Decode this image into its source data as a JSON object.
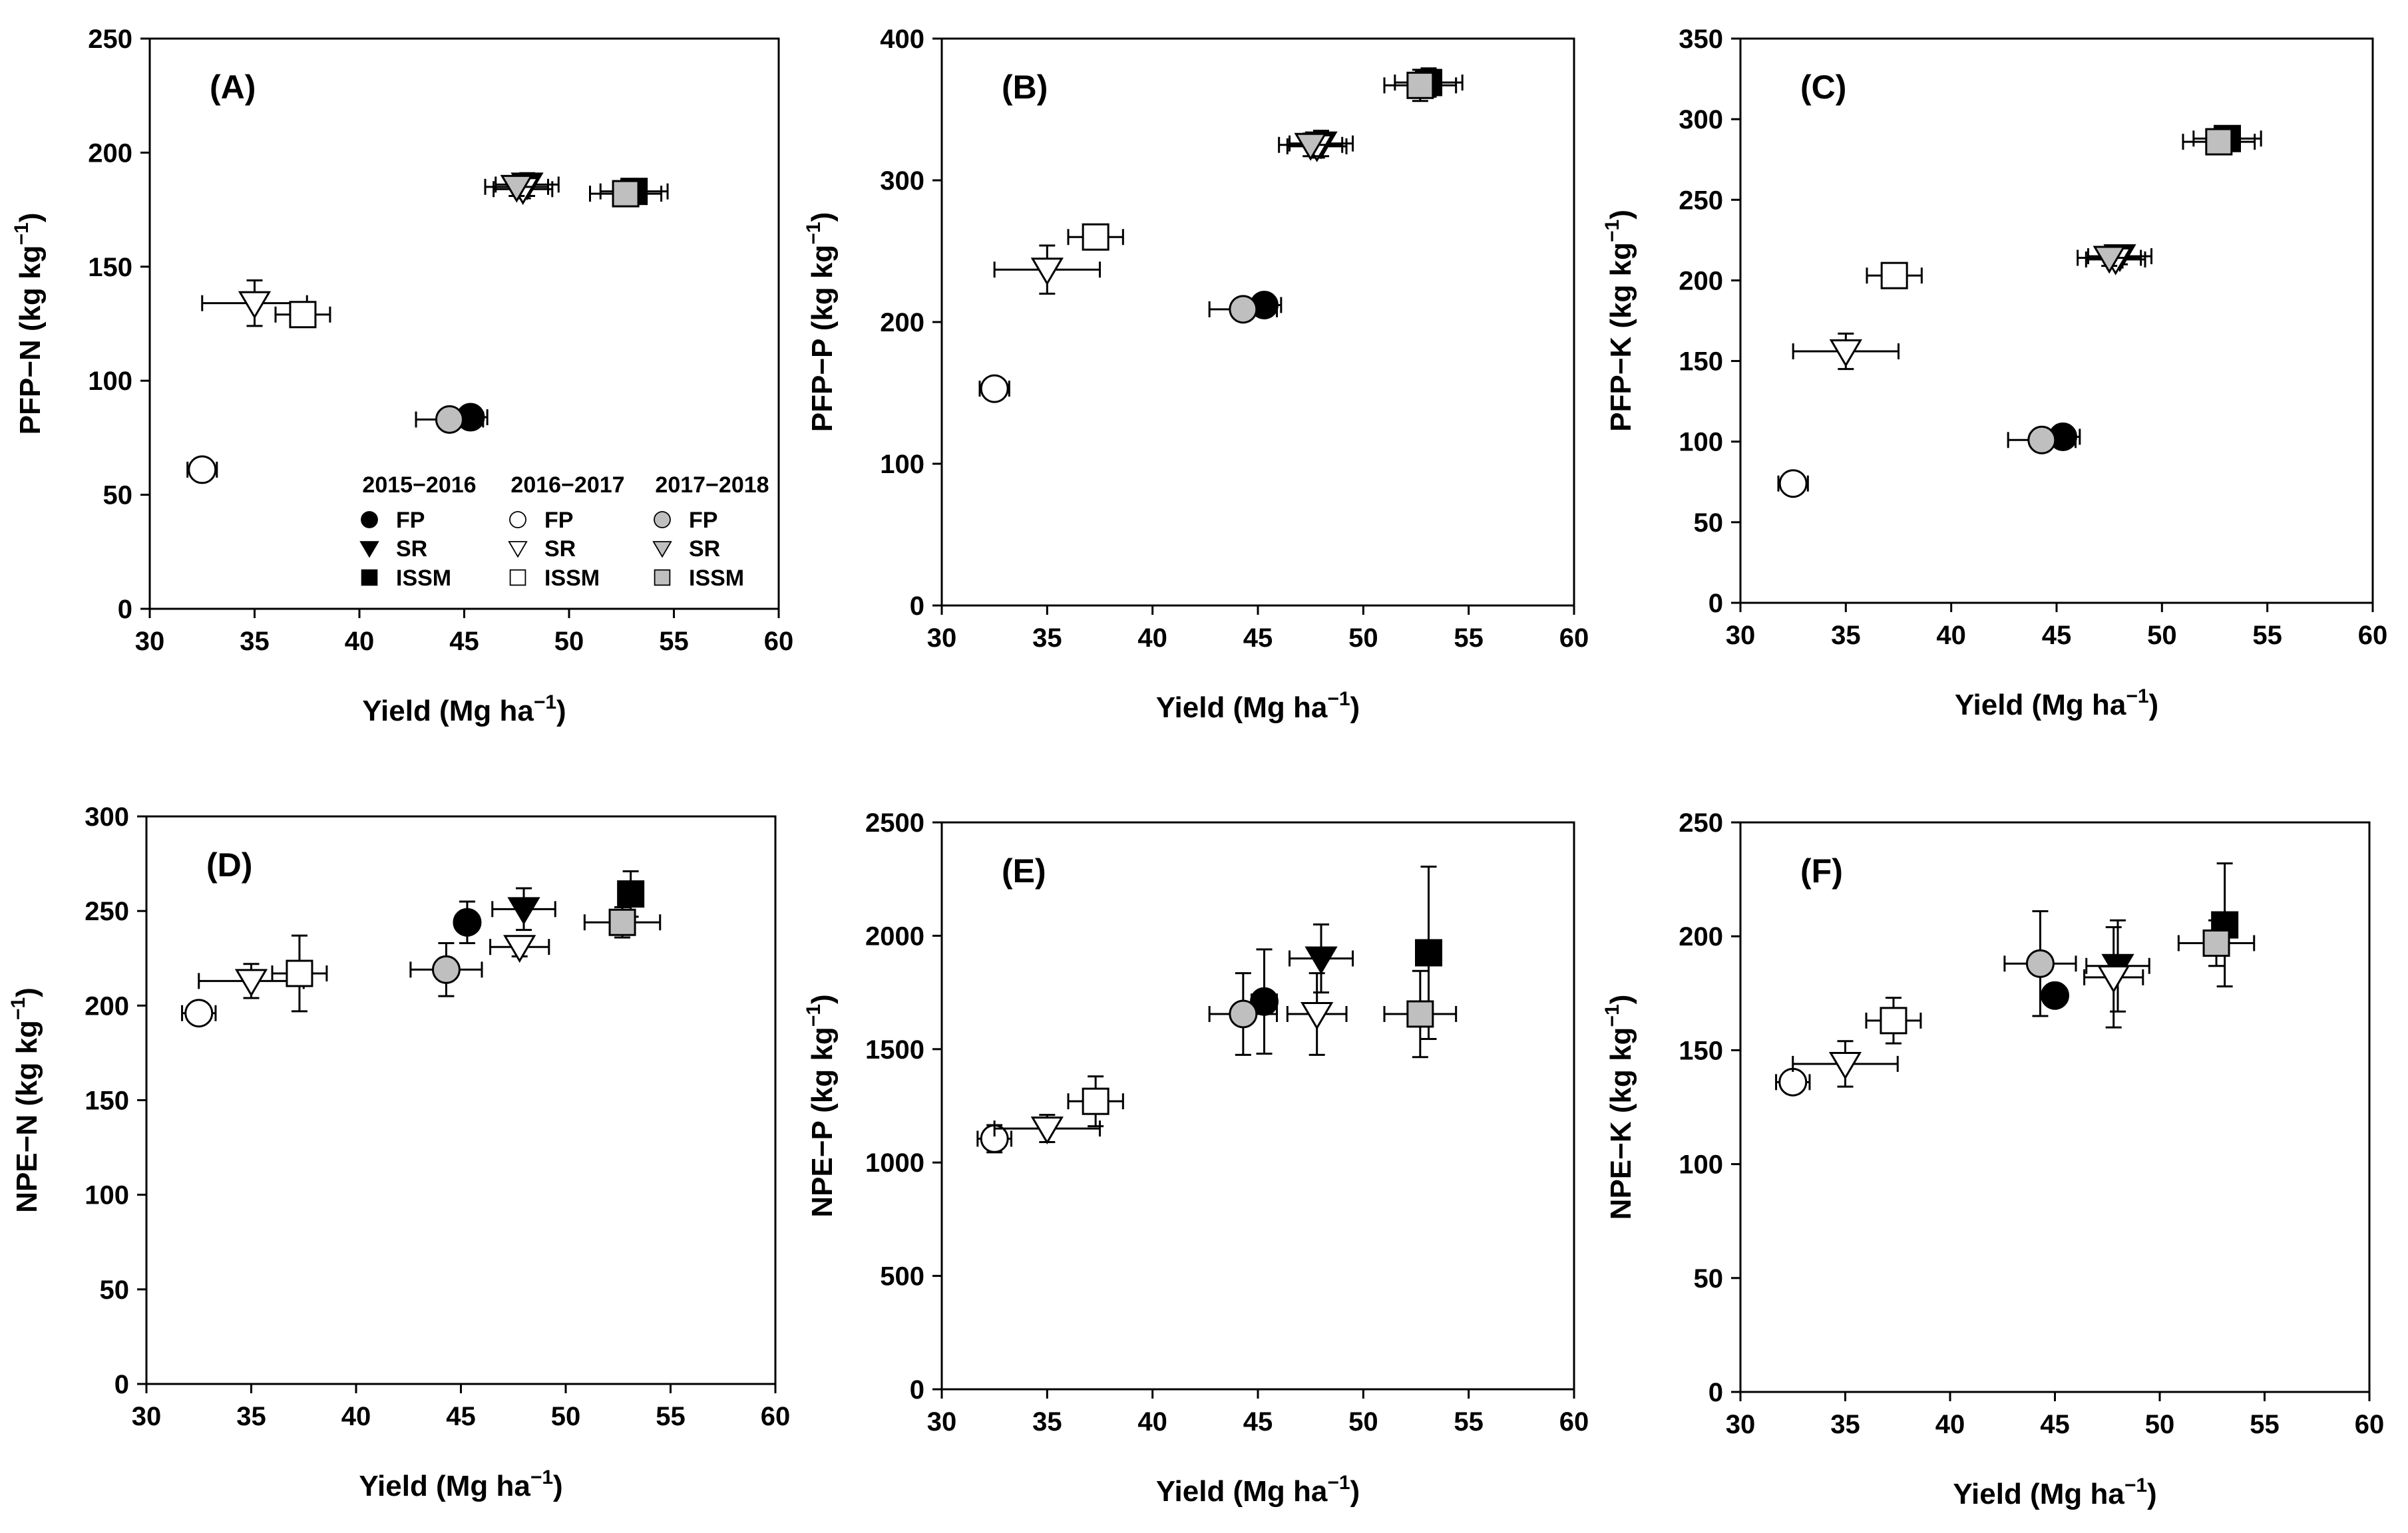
{
  "legend": {
    "years": [
      "2015−2016",
      "2016−2017",
      "2017−2018"
    ],
    "treatments": [
      "FP",
      "SR",
      "ISSM"
    ]
  },
  "colors": {
    "2015−2016": "#000000",
    "2016−2017": "#ffffff",
    "2017−2018": "#bfbfbf",
    "stroke": "#000000"
  },
  "chart_data": [
    {
      "id": "A",
      "type": "scatter",
      "label": "(A)",
      "xlabel": "Yield (Mg ha",
      "xlabel_sup": "−1",
      "xlabel_end": ")",
      "ylabel": "PFP−N (kg kg",
      "ylabel_sup": "−1",
      "ylabel_end": ")",
      "xlim": [
        30,
        60
      ],
      "ylim": [
        0,
        250
      ],
      "xticks": [
        30,
        35,
        40,
        45,
        50,
        55,
        60
      ],
      "yticks": [
        0,
        50,
        100,
        150,
        200,
        250
      ],
      "points": [
        {
          "year": "2016−2017",
          "treatment": "FP",
          "x": 32.5,
          "y": 61,
          "xerr": 0.7,
          "yerr": 3
        },
        {
          "year": "2016−2017",
          "treatment": "SR",
          "x": 35.0,
          "y": 134,
          "xerr": 2.5,
          "yerr": 10
        },
        {
          "year": "2016−2017",
          "treatment": "ISSM",
          "x": 37.3,
          "y": 129,
          "xerr": 1.3,
          "yerr": 4
        },
        {
          "year": "2015−2016",
          "treatment": "FP",
          "x": 45.3,
          "y": 84,
          "xerr": 0.8,
          "yerr": 2
        },
        {
          "year": "2017−2018",
          "treatment": "FP",
          "x": 44.3,
          "y": 83,
          "xerr": 1.6,
          "yerr": 2
        },
        {
          "year": "2015−2016",
          "treatment": "SR",
          "x": 48.0,
          "y": 186,
          "xerr": 1.5,
          "yerr": 5
        },
        {
          "year": "2016−2017",
          "treatment": "SR",
          "x": 47.8,
          "y": 184,
          "xerr": 1.4,
          "yerr": 4
        },
        {
          "year": "2017−2018",
          "treatment": "SR",
          "x": 47.5,
          "y": 185,
          "xerr": 1.5,
          "yerr": 4
        },
        {
          "year": "2015−2016",
          "treatment": "ISSM",
          "x": 53.1,
          "y": 183,
          "xerr": 1.6,
          "yerr": 4
        },
        {
          "year": "2017−2018",
          "treatment": "ISSM",
          "x": 52.7,
          "y": 182,
          "xerr": 1.7,
          "yerr": 4
        }
      ]
    },
    {
      "id": "B",
      "type": "scatter",
      "label": "(B)",
      "xlabel": "Yield (Mg ha",
      "xlabel_sup": "−1",
      "xlabel_end": ")",
      "ylabel": "PFP−P (kg kg",
      "ylabel_sup": "−1",
      "ylabel_end": ")",
      "xlim": [
        30,
        60
      ],
      "ylim": [
        0,
        400
      ],
      "xticks": [
        30,
        35,
        40,
        45,
        50,
        55,
        60
      ],
      "yticks": [
        0,
        100,
        200,
        300,
        400
      ],
      "points": [
        {
          "year": "2016−2017",
          "treatment": "FP",
          "x": 32.5,
          "y": 153,
          "xerr": 0.7,
          "yerr": 5
        },
        {
          "year": "2016−2017",
          "treatment": "SR",
          "x": 35.0,
          "y": 237,
          "xerr": 2.5,
          "yerr": 17
        },
        {
          "year": "2016−2017",
          "treatment": "ISSM",
          "x": 37.3,
          "y": 260,
          "xerr": 1.3,
          "yerr": 8
        },
        {
          "year": "2015−2016",
          "treatment": "FP",
          "x": 45.3,
          "y": 212,
          "xerr": 0.8,
          "yerr": 5
        },
        {
          "year": "2017−2018",
          "treatment": "FP",
          "x": 44.3,
          "y": 209,
          "xerr": 1.6,
          "yerr": 6
        },
        {
          "year": "2015−2016",
          "treatment": "SR",
          "x": 48.0,
          "y": 326,
          "xerr": 1.5,
          "yerr": 9
        },
        {
          "year": "2016−2017",
          "treatment": "SR",
          "x": 47.8,
          "y": 324,
          "xerr": 1.4,
          "yerr": 8
        },
        {
          "year": "2017−2018",
          "treatment": "SR",
          "x": 47.5,
          "y": 325,
          "xerr": 1.5,
          "yerr": 8
        },
        {
          "year": "2015−2016",
          "treatment": "ISSM",
          "x": 53.1,
          "y": 369,
          "xerr": 1.6,
          "yerr": 10
        },
        {
          "year": "2017−2018",
          "treatment": "ISSM",
          "x": 52.7,
          "y": 367,
          "xerr": 1.7,
          "yerr": 11
        }
      ]
    },
    {
      "id": "C",
      "type": "scatter",
      "label": "(C)",
      "xlabel": "Yield (Mg ha",
      "xlabel_sup": "−1",
      "xlabel_end": ")",
      "ylabel": "PFP−K (kg kg",
      "ylabel_sup": "−1",
      "ylabel_end": ")",
      "xlim": [
        30,
        60
      ],
      "ylim": [
        0,
        350
      ],
      "xticks": [
        30,
        35,
        40,
        45,
        50,
        55,
        60
      ],
      "yticks": [
        0,
        50,
        100,
        150,
        200,
        250,
        300,
        350
      ],
      "points": [
        {
          "year": "2016−2017",
          "treatment": "FP",
          "x": 32.5,
          "y": 74,
          "xerr": 0.7,
          "yerr": 5
        },
        {
          "year": "2016−2017",
          "treatment": "SR",
          "x": 35.0,
          "y": 156,
          "xerr": 2.5,
          "yerr": 11
        },
        {
          "year": "2016−2017",
          "treatment": "ISSM",
          "x": 37.3,
          "y": 203,
          "xerr": 1.3,
          "yerr": 6
        },
        {
          "year": "2015−2016",
          "treatment": "FP",
          "x": 45.3,
          "y": 103,
          "xerr": 0.8,
          "yerr": 3
        },
        {
          "year": "2017−2018",
          "treatment": "FP",
          "x": 44.3,
          "y": 101,
          "xerr": 1.6,
          "yerr": 3
        },
        {
          "year": "2015−2016",
          "treatment": "SR",
          "x": 48.0,
          "y": 215,
          "xerr": 1.5,
          "yerr": 5
        },
        {
          "year": "2016−2017",
          "treatment": "SR",
          "x": 47.8,
          "y": 213,
          "xerr": 1.4,
          "yerr": 5
        },
        {
          "year": "2017−2018",
          "treatment": "SR",
          "x": 47.5,
          "y": 214,
          "xerr": 1.5,
          "yerr": 5
        },
        {
          "year": "2015−2016",
          "treatment": "ISSM",
          "x": 53.1,
          "y": 288,
          "xerr": 1.6,
          "yerr": 6
        },
        {
          "year": "2017−2018",
          "treatment": "ISSM",
          "x": 52.7,
          "y": 286,
          "xerr": 1.7,
          "yerr": 7
        }
      ]
    },
    {
      "id": "D",
      "type": "scatter",
      "label": "(D)",
      "xlabel": "Yield (Mg ha",
      "xlabel_sup": "−1",
      "xlabel_end": ")",
      "ylabel": "NPE−N (kg kg",
      "ylabel_sup": "−1",
      "ylabel_end": ")",
      "xlim": [
        30,
        60
      ],
      "ylim": [
        0,
        300
      ],
      "xticks": [
        30,
        35,
        40,
        45,
        50,
        55,
        60
      ],
      "yticks": [
        0,
        50,
        100,
        150,
        200,
        250,
        300
      ],
      "points": [
        {
          "year": "2016−2017",
          "treatment": "FP",
          "x": 32.5,
          "y": 196,
          "xerr": 0.8,
          "yerr": 3
        },
        {
          "year": "2016−2017",
          "treatment": "SR",
          "x": 35.0,
          "y": 213,
          "xerr": 2.5,
          "yerr": 9
        },
        {
          "year": "2016−2017",
          "treatment": "ISSM",
          "x": 37.3,
          "y": 217,
          "xerr": 1.3,
          "yerr": 20
        },
        {
          "year": "2015−2016",
          "treatment": "FP",
          "x": 45.3,
          "y": 244,
          "xerr": 0.5,
          "yerr": 11
        },
        {
          "year": "2017−2018",
          "treatment": "FP",
          "x": 44.3,
          "y": 219,
          "xerr": 1.7,
          "yerr": 14
        },
        {
          "year": "2015−2016",
          "treatment": "SR",
          "x": 48.0,
          "y": 251,
          "xerr": 1.5,
          "yerr": 11
        },
        {
          "year": "2016−2017",
          "treatment": "SR",
          "x": 47.8,
          "y": 231,
          "xerr": 1.4,
          "yerr": 5
        },
        {
          "year": "2015−2016",
          "treatment": "ISSM",
          "x": 53.1,
          "y": 259,
          "xerr": 0.5,
          "yerr": 12
        },
        {
          "year": "2017−2018",
          "treatment": "ISSM",
          "x": 52.7,
          "y": 244,
          "xerr": 1.8,
          "yerr": 8
        }
      ]
    },
    {
      "id": "E",
      "type": "scatter",
      "label": "(E)",
      "xlabel": "Yield (Mg ha",
      "xlabel_sup": "−1",
      "xlabel_end": ")",
      "ylabel": "NPE−P (kg kg",
      "ylabel_sup": "−1",
      "ylabel_end": ")",
      "xlim": [
        30,
        60
      ],
      "ylim": [
        0,
        2500
      ],
      "xticks": [
        30,
        35,
        40,
        45,
        50,
        55,
        60
      ],
      "yticks": [
        0,
        500,
        1000,
        1500,
        2000,
        2500
      ],
      "points": [
        {
          "year": "2016−2017",
          "treatment": "FP",
          "x": 32.5,
          "y": 1105,
          "xerr": 0.8,
          "yerr": 60
        },
        {
          "year": "2016−2017",
          "treatment": "SR",
          "x": 35.0,
          "y": 1150,
          "xerr": 2.5,
          "yerr": 60
        },
        {
          "year": "2016−2017",
          "treatment": "ISSM",
          "x": 37.3,
          "y": 1270,
          "xerr": 1.3,
          "yerr": 110
        },
        {
          "year": "2015−2016",
          "treatment": "FP",
          "x": 45.3,
          "y": 1710,
          "xerr": 0.6,
          "yerr": 230
        },
        {
          "year": "2017−2018",
          "treatment": "FP",
          "x": 44.3,
          "y": 1655,
          "xerr": 1.6,
          "yerr": 180
        },
        {
          "year": "2015−2016",
          "treatment": "SR",
          "x": 48.0,
          "y": 1900,
          "xerr": 1.5,
          "yerr": 150
        },
        {
          "year": "2016−2017",
          "treatment": "SR",
          "x": 47.8,
          "y": 1655,
          "xerr": 1.4,
          "yerr": 180
        },
        {
          "year": "2015−2016",
          "treatment": "ISSM",
          "x": 53.1,
          "y": 1925,
          "xerr": 0.5,
          "yerr": 380
        },
        {
          "year": "2017−2018",
          "treatment": "ISSM",
          "x": 52.7,
          "y": 1655,
          "xerr": 1.7,
          "yerr": 190
        }
      ]
    },
    {
      "id": "F",
      "type": "scatter",
      "label": "(F)",
      "xlabel": "Yield (Mg ha",
      "xlabel_sup": "−1",
      "xlabel_end": ")",
      "ylabel": "NPE−K (kg kg",
      "ylabel_sup": "−1",
      "ylabel_end": ")",
      "xlim": [
        30,
        60
      ],
      "ylim": [
        0,
        250
      ],
      "xticks": [
        30,
        35,
        40,
        45,
        50,
        55,
        60
      ],
      "yticks": [
        0,
        50,
        100,
        150,
        200,
        250
      ],
      "points": [
        {
          "year": "2016−2017",
          "treatment": "FP",
          "x": 32.5,
          "y": 136,
          "xerr": 0.8,
          "yerr": 3
        },
        {
          "year": "2016−2017",
          "treatment": "SR",
          "x": 35.0,
          "y": 144,
          "xerr": 2.5,
          "yerr": 10
        },
        {
          "year": "2016−2017",
          "treatment": "ISSM",
          "x": 37.3,
          "y": 163,
          "xerr": 1.3,
          "yerr": 10
        },
        {
          "year": "2017−2018",
          "treatment": "FP",
          "x": 44.3,
          "y": 188,
          "xerr": 1.7,
          "yerr": 23
        },
        {
          "year": "2015−2016",
          "treatment": "FP",
          "x": 45.0,
          "y": 174,
          "xerr": 0.5,
          "yerr": 4
        },
        {
          "year": "2015−2016",
          "treatment": "SR",
          "x": 48.0,
          "y": 187,
          "xerr": 1.5,
          "yerr": 20
        },
        {
          "year": "2016−2017",
          "treatment": "SR",
          "x": 47.8,
          "y": 182,
          "xerr": 1.4,
          "yerr": 22
        },
        {
          "year": "2015−2016",
          "treatment": "ISSM",
          "x": 53.1,
          "y": 205,
          "xerr": 0.5,
          "yerr": 27
        },
        {
          "year": "2017−2018",
          "treatment": "ISSM",
          "x": 52.7,
          "y": 197,
          "xerr": 1.8,
          "yerr": 10
        }
      ]
    }
  ]
}
